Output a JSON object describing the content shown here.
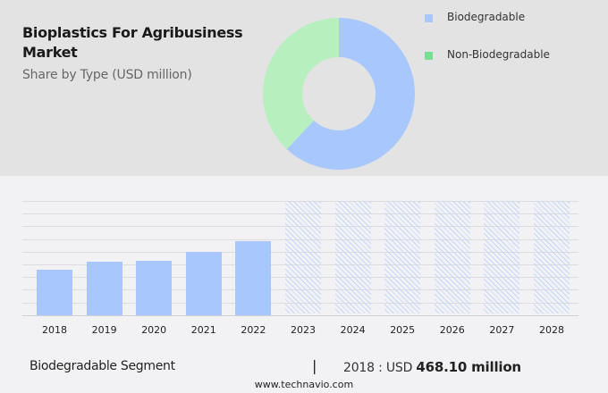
{
  "header": {
    "title": "Bioplastics For Agribusiness Market",
    "subtitle": "Share by Type (USD million)"
  },
  "legend": [
    {
      "label": "Biodegradable",
      "color": "#a8c8fd"
    },
    {
      "label": "Non-Biodegradable",
      "color": "#76df93"
    }
  ],
  "footer": {
    "segment": "Biodegradable Segment",
    "separator": "|",
    "value_prefix": "2018 : USD ",
    "value_bold": "468.10 million",
    "url": "www.technavio.com"
  },
  "chart_data": [
    {
      "type": "pie",
      "subtype": "donut",
      "title": "Share by Type (USD million)",
      "categories": [
        "Biodegradable",
        "Non-Biodegradable"
      ],
      "values": [
        62,
        38
      ],
      "colors": [
        "#a8c8fd",
        "#b8efbf"
      ],
      "legend_position": "right"
    },
    {
      "type": "bar",
      "categories": [
        "2018",
        "2019",
        "2020",
        "2021",
        "2022",
        "2023",
        "2024",
        "2025",
        "2026",
        "2027",
        "2028"
      ],
      "series": [
        {
          "name": "Biodegradable",
          "values": [
            468.1,
            545,
            555,
            645,
            760,
            null,
            null,
            null,
            null,
            null,
            null
          ]
        }
      ],
      "forecast_categories": [
        "2023",
        "2024",
        "2025",
        "2026",
        "2027",
        "2028"
      ],
      "xlabel": "",
      "ylabel": "",
      "grid": true,
      "bar_color": "#a8c8fd"
    }
  ]
}
